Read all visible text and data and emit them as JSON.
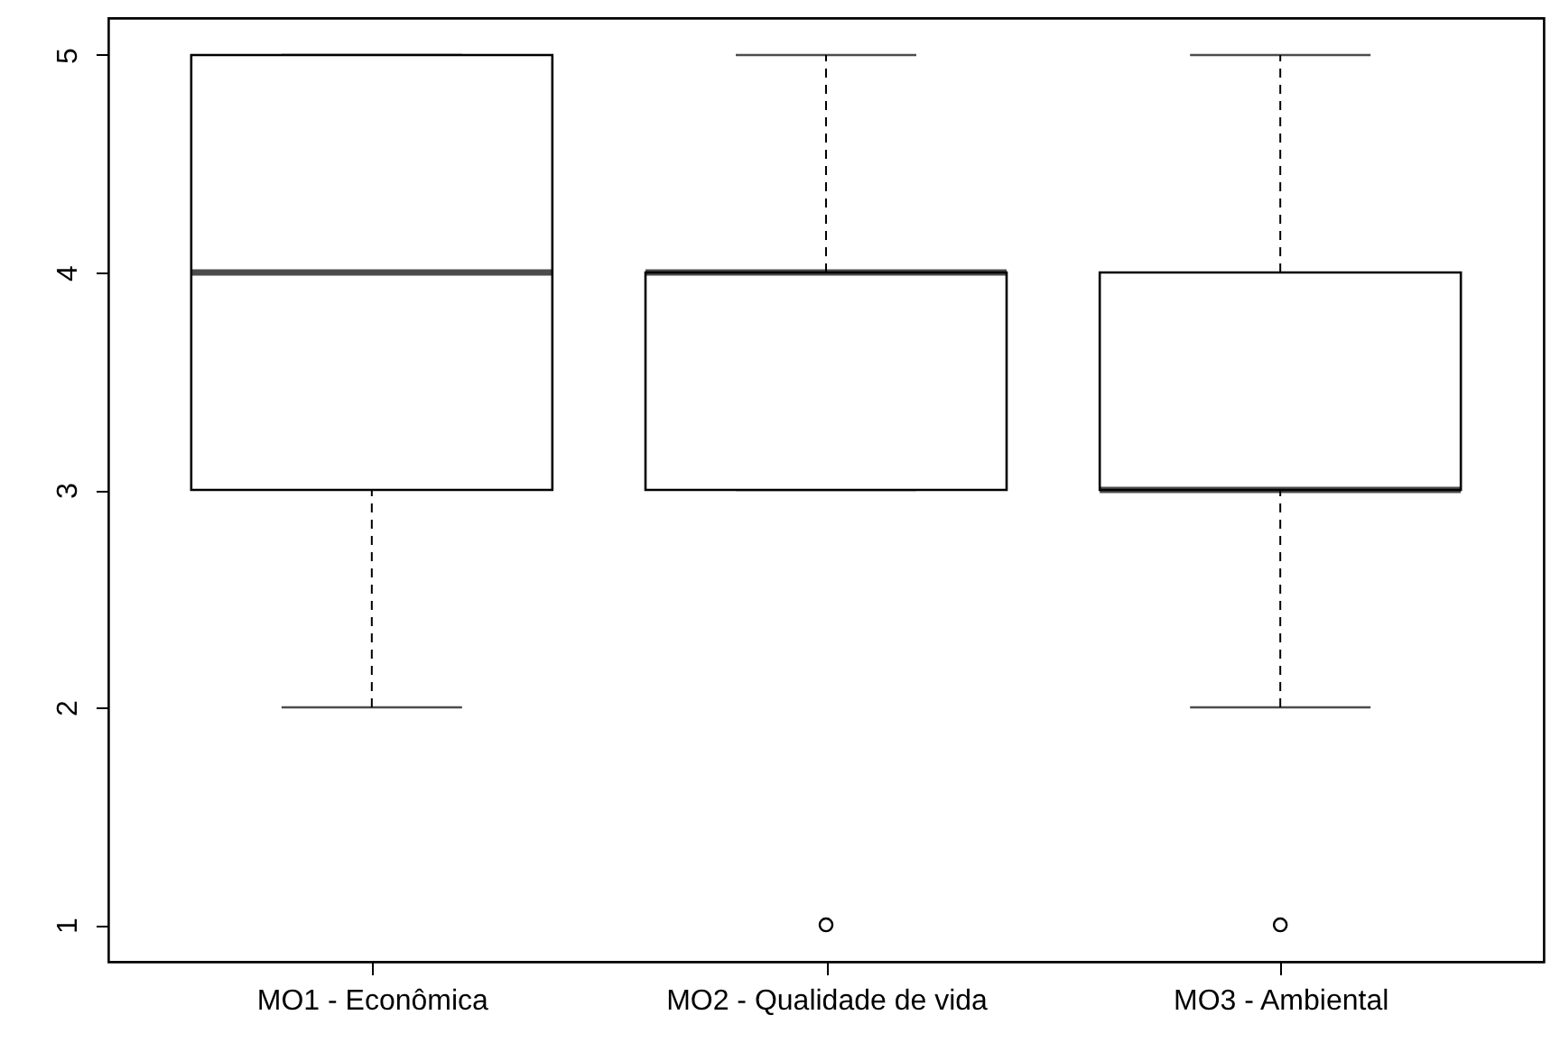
{
  "chart_data": {
    "type": "box",
    "categories": [
      "MO1 - Econômica",
      "MO2 - Qualidade de vida",
      "MO3 - Ambiental"
    ],
    "boxes": [
      {
        "low": 2,
        "q1": 3,
        "median": 4,
        "q3": 5,
        "high": 5
      },
      {
        "low": 3,
        "q1": 3,
        "median": 4,
        "q3": 4,
        "high": 5,
        "outliers": [
          1
        ]
      },
      {
        "low": 2,
        "q1": 3,
        "median": 3,
        "q3": 4,
        "high": 5,
        "outliers": [
          1
        ]
      }
    ],
    "ylim": [
      0.83,
      5.17
    ],
    "yticks": [
      1,
      2,
      3,
      4,
      5
    ]
  }
}
